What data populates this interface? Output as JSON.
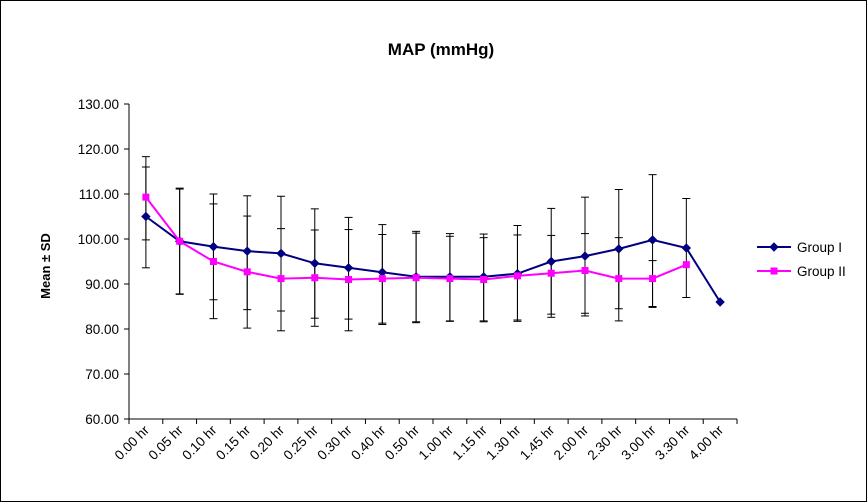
{
  "chart_data": {
    "type": "line",
    "title": "MAP (mmHg)",
    "xlabel": "",
    "ylabel": "Mean ± SD",
    "ylim": [
      60,
      130
    ],
    "yticks": [
      "60.00",
      "70.00",
      "80.00",
      "90.00",
      "100.00",
      "110.00",
      "120.00",
      "130.00"
    ],
    "categories": [
      "0.00 hr",
      "0.05 hr",
      "0.10 hr",
      "0.15 hr",
      "0.20 hr",
      "0.25 hr",
      "0.30 hr",
      "0.40 hr",
      "0.50 hr",
      "1.00 hr",
      "1.15 hr",
      "1.30 hr",
      "1.45 hr",
      "2.00 hr",
      "2.30 hr",
      "3.00 hr",
      "3.30 hr",
      "4.00 hr"
    ],
    "grid": false,
    "legend_position": "right",
    "series": [
      {
        "name": "Group I",
        "color": "#000080",
        "marker": "diamond",
        "values": [
          105.0,
          99.5,
          98.3,
          97.3,
          96.8,
          94.6,
          93.6,
          92.6,
          91.6,
          91.6,
          91.6,
          92.3,
          95.0,
          96.2,
          97.8,
          99.8,
          98.0,
          86.0
        ],
        "error_low": [
          93.6,
          87.8,
          86.5,
          84.3,
          84.0,
          82.4,
          82.2,
          81.3,
          81.6,
          81.8,
          81.8,
          82.0,
          83.3,
          83.5,
          84.5,
          85.0,
          87.0,
          null
        ],
        "error_high": [
          116.0,
          111.3,
          110.0,
          109.6,
          109.5,
          106.7,
          104.8,
          103.2,
          101.7,
          101.2,
          101.1,
          103.0,
          106.8,
          109.3,
          111.0,
          114.3,
          109.0,
          null
        ]
      },
      {
        "name": "Group II",
        "color": "#ff00ff",
        "marker": "square",
        "values": [
          109.3,
          99.5,
          95.0,
          92.7,
          91.2,
          91.4,
          91.0,
          91.2,
          91.4,
          91.2,
          91.0,
          91.8,
          92.4,
          93.0,
          91.2,
          91.2,
          94.3,
          null
        ],
        "error_low": [
          99.8,
          87.7,
          82.3,
          80.2,
          79.6,
          80.6,
          79.6,
          81.0,
          81.4,
          81.7,
          81.6,
          81.7,
          82.6,
          82.9,
          81.8,
          84.8,
          null,
          null
        ],
        "error_high": [
          118.3,
          111.1,
          107.8,
          105.1,
          102.3,
          102.0,
          102.1,
          101.0,
          101.3,
          100.6,
          100.3,
          100.9,
          100.8,
          101.2,
          100.3,
          95.2,
          null,
          null
        ]
      }
    ]
  }
}
